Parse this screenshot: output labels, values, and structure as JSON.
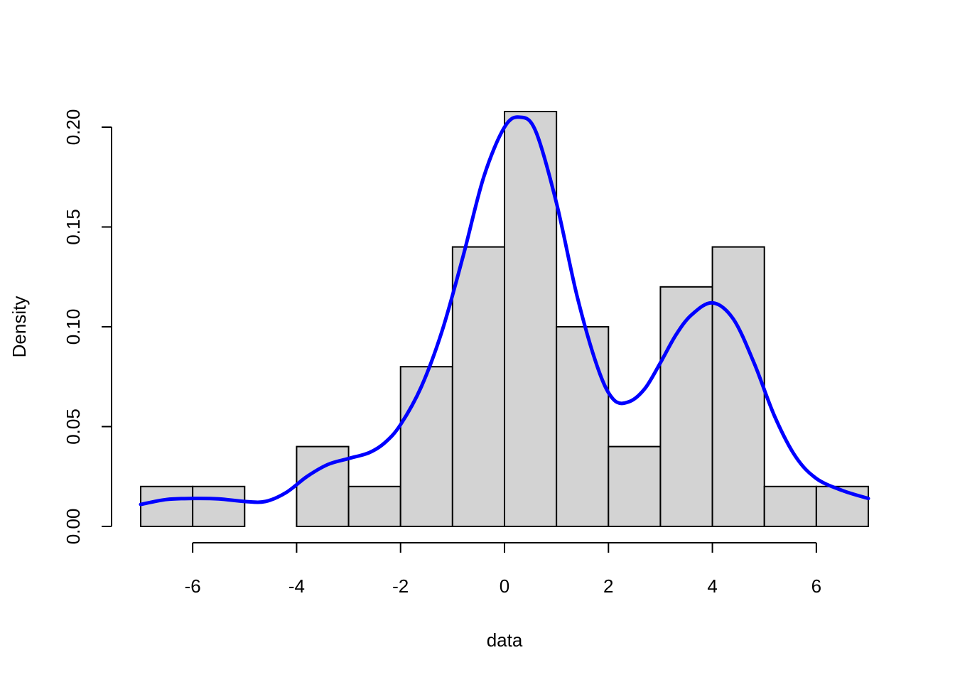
{
  "chart_data": {
    "type": "bar",
    "subtype": "histogram-with-density",
    "title": "",
    "xlabel": "data",
    "ylabel": "Density",
    "xlim": [
      -7,
      7
    ],
    "ylim": [
      0,
      0.2
    ],
    "x_ticks": [
      -6,
      -4,
      -2,
      0,
      2,
      4,
      6
    ],
    "x_tick_labels": [
      "-6",
      "-4",
      "-2",
      "0",
      "2",
      "4",
      "6"
    ],
    "y_ticks": [
      0,
      0.05,
      0.1,
      0.15,
      0.2
    ],
    "y_tick_labels": [
      "0.00",
      "0.05",
      "0.10",
      "0.15",
      "0.20"
    ],
    "grid": false,
    "bins": [
      {
        "x0": -7,
        "x1": -6,
        "density": 0.02
      },
      {
        "x0": -6,
        "x1": -5,
        "density": 0.02
      },
      {
        "x0": -5,
        "x1": -4,
        "density": 0.0
      },
      {
        "x0": -4,
        "x1": -3,
        "density": 0.04
      },
      {
        "x0": -3,
        "x1": -2,
        "density": 0.02
      },
      {
        "x0": -2,
        "x1": -1,
        "density": 0.08
      },
      {
        "x0": -1,
        "x1": 0,
        "density": 0.14
      },
      {
        "x0": 0,
        "x1": 1,
        "density": 0.21
      },
      {
        "x0": 1,
        "x1": 2,
        "density": 0.1
      },
      {
        "x0": 2,
        "x1": 3,
        "density": 0.04
      },
      {
        "x0": 3,
        "x1": 4,
        "density": 0.12
      },
      {
        "x0": 4,
        "x1": 5,
        "density": 0.14
      },
      {
        "x0": 5,
        "x1": 6,
        "density": 0.02
      },
      {
        "x0": 6,
        "x1": 7,
        "density": 0.02
      }
    ],
    "density_curve": {
      "x": [
        -7,
        -6.5,
        -6,
        -5.5,
        -5,
        -4.6,
        -4.2,
        -3.8,
        -3.4,
        -3,
        -2.6,
        -2.3,
        -2,
        -1.6,
        -1.2,
        -0.8,
        -0.4,
        0,
        0.3,
        0.6,
        1,
        1.4,
        1.8,
        2.1,
        2.4,
        2.7,
        3,
        3.3,
        3.6,
        4,
        4.4,
        4.8,
        5.2,
        5.6,
        6,
        6.5,
        7
      ],
      "y": [
        0.011,
        0.0135,
        0.014,
        0.0138,
        0.0125,
        0.0125,
        0.017,
        0.025,
        0.031,
        0.034,
        0.037,
        0.042,
        0.051,
        0.07,
        0.098,
        0.135,
        0.175,
        0.2,
        0.205,
        0.198,
        0.162,
        0.115,
        0.079,
        0.0635,
        0.0625,
        0.069,
        0.082,
        0.096,
        0.106,
        0.112,
        0.104,
        0.082,
        0.055,
        0.035,
        0.024,
        0.018,
        0.014
      ],
      "color": "#0000FF"
    },
    "bar_fill": "#D3D3D3",
    "bar_stroke": "#000000"
  }
}
